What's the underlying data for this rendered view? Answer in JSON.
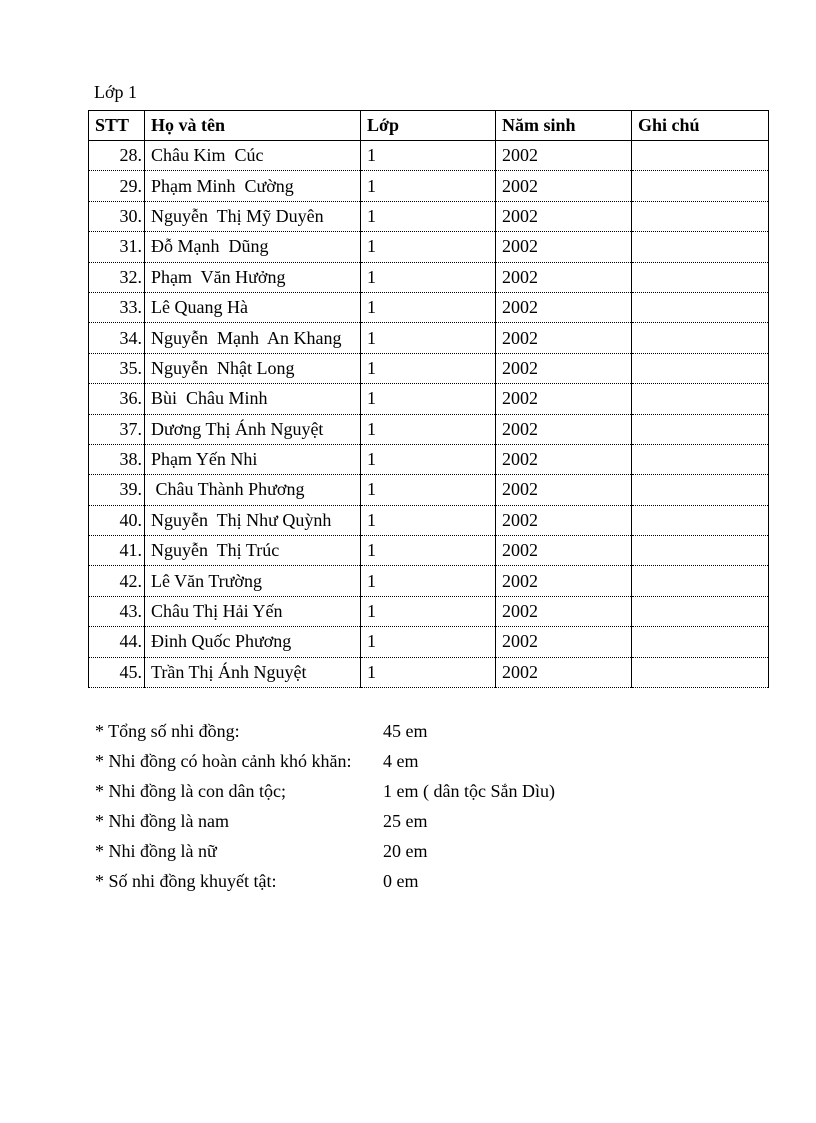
{
  "title": "Lớp 1",
  "table": {
    "headers": [
      "STT",
      "Họ và tên",
      "Lớp",
      "Năm sinh",
      "Ghi chú"
    ],
    "rows": [
      {
        "stt": "28.",
        "name": "Châu Kim  Cúc",
        "class": "1",
        "year": "2002",
        "note": ""
      },
      {
        "stt": "29.",
        "name": "Phạm Minh  Cường",
        "class": "1",
        "year": "2002",
        "note": ""
      },
      {
        "stt": "30.",
        "name": "Nguyễn  Thị Mỹ Duyên",
        "class": "1",
        "year": "2002",
        "note": ""
      },
      {
        "stt": "31.",
        "name": "Đỗ Mạnh  Dũng",
        "class": "1",
        "year": "2002",
        "note": ""
      },
      {
        "stt": "32.",
        "name": "Phạm  Văn Hưởng",
        "class": "1",
        "year": "2002",
        "note": ""
      },
      {
        "stt": "33.",
        "name": "Lê Quang Hà",
        "class": "1",
        "year": "2002",
        "note": ""
      },
      {
        "stt": "34.",
        "name": "Nguyễn  Mạnh  An Khang",
        "class": "1",
        "year": "2002",
        "note": ""
      },
      {
        "stt": "35.",
        "name": "Nguyễn  Nhật Long",
        "class": "1",
        "year": "2002",
        "note": ""
      },
      {
        "stt": "36.",
        "name": "Bùi  Châu Minh",
        "class": "1",
        "year": "2002",
        "note": ""
      },
      {
        "stt": "37.",
        "name": "Dương Thị Ánh Nguyệt",
        "class": "1",
        "year": "2002",
        "note": ""
      },
      {
        "stt": "38.",
        "name": "Phạm Yến Nhi",
        "class": "1",
        "year": "2002",
        "note": ""
      },
      {
        "stt": "39.",
        "name": " Châu Thành Phương",
        "class": "1",
        "year": "2002",
        "note": ""
      },
      {
        "stt": "40.",
        "name": "Nguyễn  Thị Như Quỳnh",
        "class": "1",
        "year": "2002",
        "note": ""
      },
      {
        "stt": "41.",
        "name": "Nguyễn  Thị Trúc",
        "class": "1",
        "year": "2002",
        "note": ""
      },
      {
        "stt": "42.",
        "name": "Lê Văn Trường",
        "class": "1",
        "year": "2002",
        "note": ""
      },
      {
        "stt": "43.",
        "name": "Châu Thị Hải Yến",
        "class": "1",
        "year": "2002",
        "note": ""
      },
      {
        "stt": "44.",
        "name": "Đinh Quốc Phương",
        "class": "1",
        "year": "2002",
        "note": ""
      },
      {
        "stt": "45.",
        "name": "Trần Thị Ánh Nguyệt",
        "class": "1",
        "year": "2002",
        "note": ""
      }
    ]
  },
  "summary": [
    {
      "label": "* Tổng số nhi  đồng:",
      "value": "45  em"
    },
    {
      "label": "* Nhi  đồng có hoàn cảnh khó khăn:",
      "value": "4  em"
    },
    {
      "label": "* Nhi  đồng là  con dân tộc;",
      "value": "1  em ( dân tộc Sắn Dìu)"
    },
    {
      "label": "* Nhi  đồng là nam",
      "value": "25  em"
    },
    {
      "label": "* Nhi  đồng là nữ",
      "value": "20  em"
    },
    {
      "label": "* Số nhi  đồng khuyết  tật:",
      "value": "0  em"
    }
  ]
}
